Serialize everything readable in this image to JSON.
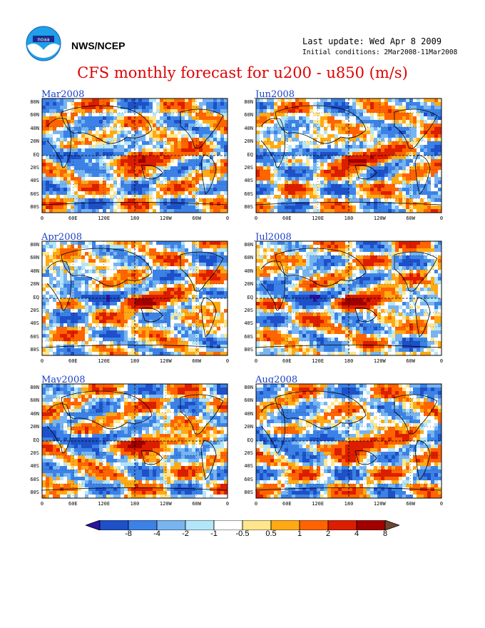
{
  "header": {
    "org": "NWS/NCEP",
    "last_update": "Last update: Wed Apr 8 2009",
    "initial_conditions": "Initial conditions: 2Mar2008-11Mar2008",
    "title": "CFS monthly forecast for u200 - u850 (m/s)",
    "logo_icon": "noaa-logo-icon",
    "logo_text": "noaa"
  },
  "axes": {
    "lat_labels": [
      "80N",
      "60N",
      "40N",
      "20N",
      "EQ",
      "20S",
      "40S",
      "60S",
      "80S"
    ],
    "lon_labels": [
      "0",
      "60E",
      "120E",
      "180",
      "120W",
      "60W",
      "0"
    ]
  },
  "panels": [
    {
      "title": "Mar2008"
    },
    {
      "title": "Jun2008"
    },
    {
      "title": "Apr2008"
    },
    {
      "title": "Jul2008"
    },
    {
      "title": "May2008"
    },
    {
      "title": "Aug2008"
    }
  ],
  "colorbar": {
    "labels": [
      "-8",
      "-4",
      "-2",
      "-1",
      "-0.5",
      "0.5",
      "1",
      "2",
      "4",
      "8"
    ],
    "colors": [
      "#2a14a0",
      "#1e50c8",
      "#3c82e6",
      "#78b4f0",
      "#b4e6fa",
      "#ffffff",
      "#ffe68c",
      "#ffaa14",
      "#ff6400",
      "#dc1e00",
      "#a00000",
      "#6e4632"
    ]
  }
}
